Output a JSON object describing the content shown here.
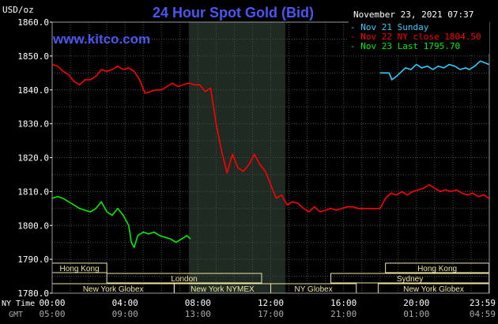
{
  "chart_data": {
    "type": "line",
    "title": "24 Hour Spot Gold (Bid)",
    "website": "www.kitco.com",
    "timestamp": "November 23, 2021 07:37",
    "unit_label": "USD/oz",
    "ylim": [
      1780.0,
      1860.0
    ],
    "y_ticks": [
      "1860.0",
      "1850.0",
      "1840.0",
      "1830.0",
      "1820.0",
      "1810.0",
      "1800.0",
      "1790.0",
      "1780.0"
    ],
    "x_ticks_ny": [
      "00:00",
      "04:00",
      "08:00",
      "12:00",
      "16:00",
      "20:00",
      "23:59"
    ],
    "x_ticks_gmt": [
      "05:00",
      "09:00",
      "13:00",
      "17:00",
      "21:00",
      "01:00",
      "04:59"
    ],
    "x_axis_labels": {
      "ny": "NY Time",
      "gmt": "GMT"
    },
    "grid": true,
    "legend_position": "top-right",
    "shaded_hours": [
      7.5,
      12.8
    ],
    "colors": {
      "sunday": "#33ccff",
      "close": "#ff0000",
      "last": "#00ee00",
      "title": "#4a56f0",
      "grid": "#4c4c4c",
      "session": "#f0e6a0"
    },
    "series": [
      {
        "name": "Nov 21 Sunday",
        "color_key": "sunday",
        "x": [
          18.0,
          18.5,
          18.65,
          18.9,
          19.1,
          19.4,
          19.7,
          20.0,
          20.3,
          20.6,
          20.9,
          21.2,
          21.5,
          21.8,
          22.1,
          22.4,
          22.7,
          22.9,
          23.2,
          23.5,
          23.75,
          23.98
        ],
        "y": [
          1845.0,
          1845.0,
          1843.0,
          1844.0,
          1845.0,
          1846.5,
          1846.0,
          1847.5,
          1846.5,
          1847.0,
          1846.0,
          1847.0,
          1846.5,
          1847.5,
          1847.0,
          1846.0,
          1846.5,
          1846.0,
          1847.0,
          1848.5,
          1848.0,
          1847.5
        ]
      },
      {
        "name": "Nov 22 NY close 1804.50",
        "color_key": "close",
        "x": [
          0,
          0.3,
          0.6,
          0.9,
          1.2,
          1.5,
          1.8,
          2.1,
          2.4,
          2.7,
          3.0,
          3.3,
          3.6,
          3.9,
          4.2,
          4.5,
          4.8,
          5.1,
          5.4,
          5.7,
          6.0,
          6.3,
          6.6,
          6.9,
          7.2,
          7.5,
          7.8,
          8.1,
          8.4,
          8.7,
          9.0,
          9.3,
          9.6,
          9.9,
          10.2,
          10.5,
          10.8,
          11.1,
          11.4,
          11.7,
          12.0,
          12.3,
          12.6,
          12.9,
          13.2,
          13.5,
          13.8,
          14.1,
          14.4,
          14.7,
          15.0,
          15.3,
          15.6,
          15.9,
          16.2,
          16.5,
          16.8,
          17.1,
          17.4,
          17.7,
          18.0,
          18.3,
          18.6,
          18.9,
          19.2,
          19.5,
          19.8,
          20.1,
          20.4,
          20.7,
          21.0,
          21.3,
          21.6,
          21.9,
          22.2,
          22.5,
          22.8,
          23.1,
          23.4,
          23.7,
          23.98
        ],
        "y": [
          1847.5,
          1847.0,
          1845.5,
          1844.5,
          1842.5,
          1841.5,
          1843.0,
          1843.0,
          1844.0,
          1846.0,
          1845.5,
          1846.0,
          1847.0,
          1846.0,
          1846.5,
          1845.5,
          1843.0,
          1839.0,
          1839.5,
          1840.0,
          1840.0,
          1841.0,
          1842.0,
          1841.0,
          1841.5,
          1842.0,
          1841.5,
          1841.5,
          1839.5,
          1840.5,
          1830.0,
          1822.0,
          1815.5,
          1821.0,
          1817.0,
          1816.0,
          1818.0,
          1821.0,
          1818.0,
          1816.0,
          1812.0,
          1808.0,
          1809.0,
          1806.0,
          1807.0,
          1806.5,
          1805.0,
          1804.0,
          1805.5,
          1804.0,
          1804.5,
          1805.0,
          1804.5,
          1805.0,
          1805.5,
          1805.5,
          1805.0,
          1805.0,
          1805.0,
          1805.0,
          1805.0,
          1808.0,
          1809.5,
          1809.0,
          1810.0,
          1809.0,
          1810.0,
          1810.5,
          1811.0,
          1812.0,
          1811.0,
          1810.0,
          1810.5,
          1810.0,
          1810.5,
          1809.5,
          1809.0,
          1809.5,
          1808.5,
          1809.0,
          1808.0
        ]
      },
      {
        "name": "Nov 23 Last 1795.70",
        "color_key": "last",
        "x": [
          0,
          0.3,
          0.6,
          0.9,
          1.2,
          1.5,
          1.8,
          2.1,
          2.4,
          2.7,
          3.0,
          3.3,
          3.6,
          3.9,
          4.2,
          4.35,
          4.5,
          4.7,
          5.0,
          5.3,
          5.6,
          5.9,
          6.2,
          6.5,
          6.8,
          7.1,
          7.4,
          7.6
        ],
        "y": [
          1808.0,
          1808.5,
          1808.0,
          1807.0,
          1806.0,
          1805.0,
          1804.5,
          1804.0,
          1805.0,
          1807.0,
          1804.0,
          1803.0,
          1805.0,
          1803.0,
          1800.0,
          1795.0,
          1793.5,
          1797.0,
          1798.0,
          1797.5,
          1798.0,
          1797.0,
          1796.5,
          1796.0,
          1795.0,
          1796.0,
          1797.0,
          1796.0
        ]
      }
    ],
    "sessions": [
      {
        "label": "Hong Kong",
        "row": 0,
        "start": 0,
        "end": 3.0
      },
      {
        "label": "Hong Kong",
        "row": 0,
        "start": 18.3,
        "end": 23.98
      },
      {
        "label": "London",
        "row": 1,
        "start": 3.0,
        "end": 11.5
      },
      {
        "label": "Sydney",
        "row": 1,
        "start": 15.3,
        "end": 23.98
      },
      {
        "label": "New York Globex",
        "row": 2,
        "start": 0,
        "end": 6.7
      },
      {
        "label": "New York NYMEX",
        "row": 2,
        "start": 6.7,
        "end": 12.0
      },
      {
        "label": "NY Globex",
        "row": 2,
        "start": 12.0,
        "end": 16.7
      },
      {
        "label": "New York Globex",
        "row": 2,
        "start": 17.9,
        "end": 23.98
      }
    ]
  }
}
